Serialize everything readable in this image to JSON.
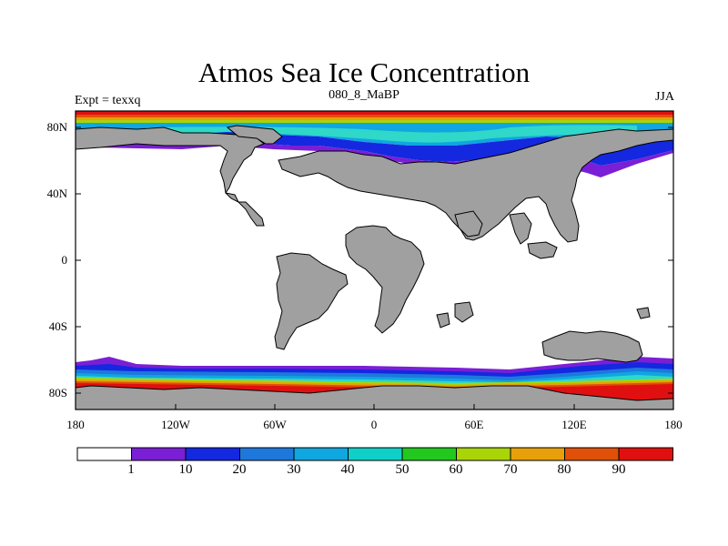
{
  "title": "Atmos Sea Ice Concentration",
  "subtitle": "080_8_MaBP",
  "left_label": "Expt = texxq",
  "right_label": "JJA",
  "lat_ticks": [
    "80N",
    "40N",
    "0",
    "40S",
    "80S"
  ],
  "lon_ticks": [
    "180",
    "120W",
    "60W",
    "0",
    "60E",
    "120E",
    "180"
  ],
  "colorbar": {
    "labels": [
      "1",
      "10",
      "20",
      "30",
      "40",
      "50",
      "60",
      "70",
      "80",
      "90"
    ],
    "colors": [
      "#ffffff",
      "#7a1fd6",
      "#1428e0",
      "#1e78dc",
      "#10a6e0",
      "#10cfc8",
      "#22c81e",
      "#a8d408",
      "#e8a00a",
      "#e05008",
      "#e01010"
    ]
  },
  "colors": {
    "land": "#a0a0a0",
    "no_ice": "#ffffff",
    "polar_high": "#2fd8c8"
  }
}
